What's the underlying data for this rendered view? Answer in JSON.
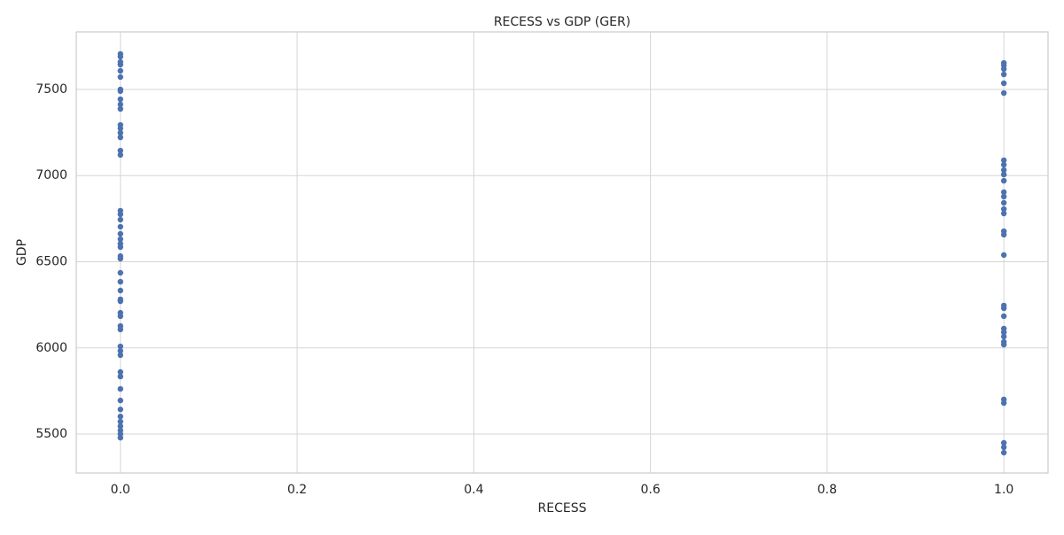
{
  "chart_data": {
    "type": "scatter",
    "title": "RECESS vs GDP (GER)",
    "xlabel": "RECESS",
    "ylabel": "GDP",
    "series": [
      {
        "color": "#4c72b0",
        "x": [
          0,
          0,
          0,
          0,
          0,
          0,
          0,
          0,
          0,
          0,
          0,
          0,
          0,
          0,
          0,
          0,
          0,
          0,
          0,
          0,
          0,
          0,
          0,
          0,
          0,
          0,
          0,
          0,
          0,
          0,
          0,
          0,
          0,
          0,
          0,
          0,
          0,
          0,
          0,
          0,
          0,
          0,
          0,
          0,
          0,
          0,
          0,
          0,
          0,
          0,
          1,
          1,
          1,
          1,
          1,
          1,
          1,
          1,
          1,
          1,
          1,
          1,
          1,
          1,
          1,
          1,
          1,
          1,
          1,
          1,
          1,
          1,
          1,
          1,
          1,
          1,
          1,
          1,
          1,
          1,
          1,
          1
        ],
        "values": [
          7706,
          7690,
          7659,
          7644,
          7608,
          7572,
          7500,
          7490,
          7443,
          7413,
          7387,
          7294,
          7274,
          7248,
          7222,
          7145,
          7120,
          6796,
          6775,
          6744,
          6703,
          6662,
          6631,
          6605,
          6585,
          6533,
          6518,
          6436,
          6384,
          6333,
          6282,
          6271,
          6204,
          6184,
          6127,
          6107,
          6009,
          5983,
          5958,
          5860,
          5834,
          5762,
          5695,
          5643,
          5602,
          5572,
          5546,
          5521,
          5500,
          5479,
          7654,
          7639,
          7618,
          7587,
          7536,
          7479,
          7089,
          7063,
          7032,
          7006,
          6970,
          6904,
          6878,
          6842,
          6806,
          6780,
          6677,
          6657,
          6539,
          6246,
          6230,
          6184,
          6112,
          6091,
          6066,
          6035,
          6019,
          5701,
          5680,
          5449,
          5423,
          5392
        ]
      }
    ],
    "xlim": [
      -0.05,
      1.05
    ],
    "xticks": [
      {
        "value": 0,
        "label": "0.0"
      },
      {
        "value": 0.2,
        "label": "0.2"
      },
      {
        "value": 0.4,
        "label": "0.4"
      },
      {
        "value": 0.6,
        "label": "0.6"
      },
      {
        "value": 0.8,
        "label": "0.8"
      },
      {
        "value": 1,
        "label": "1.0"
      }
    ],
    "ylim": [
      5274,
      7834
    ],
    "yticks": [
      5500,
      6000,
      6500,
      7000,
      7500
    ],
    "grid": true
  }
}
